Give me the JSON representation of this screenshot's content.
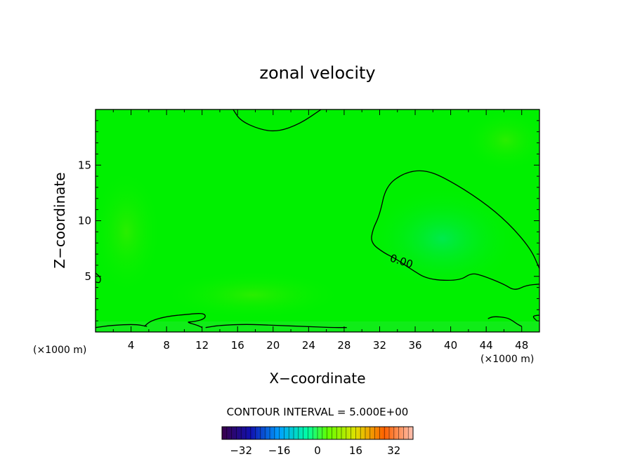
{
  "chart_data": {
    "type": "heatmap",
    "title": "zonal velocity",
    "xlabel": "X−coordinate",
    "ylabel": "Z−coordinate",
    "x_unit_left": "(×1000 m)",
    "x_unit_right": "(×1000 m)",
    "xlim": [
      0,
      50
    ],
    "ylim": [
      0,
      20
    ],
    "xticks": [
      4,
      8,
      12,
      16,
      20,
      24,
      28,
      32,
      36,
      40,
      44,
      48
    ],
    "yticks": [
      5,
      10,
      15
    ],
    "xtick_labels": [
      "4",
      "8",
      "12",
      "16",
      "20",
      "24",
      "28",
      "32",
      "36",
      "40",
      "44",
      "48"
    ],
    "ytick_labels": [
      "5",
      "10",
      "15"
    ],
    "background_color": "#00f000",
    "contour_label": "0.00",
    "contour_interval_text": "CONTOUR INTERVAL = 5.000E+00",
    "colorbar": {
      "range": [
        -40,
        40
      ],
      "ticks": [
        -32,
        -16,
        0,
        16,
        32
      ],
      "tick_labels": [
        "−32",
        "−16",
        "0",
        "16",
        "32"
      ]
    },
    "contours": [
      {
        "level": 0,
        "points": [
          [
            15.5,
            20
          ],
          [
            16.3,
            19
          ],
          [
            18.5,
            18.2
          ],
          [
            20.5,
            18.0
          ],
          [
            23,
            18.7
          ],
          [
            25.4,
            20
          ]
        ]
      },
      {
        "level": 0,
        "points": [
          [
            50,
            5.7
          ],
          [
            49,
            7.5
          ],
          [
            46.5,
            9.8
          ],
          [
            43.5,
            11.8
          ],
          [
            39.5,
            13.8
          ],
          [
            37,
            14.6
          ],
          [
            34.7,
            14.3
          ],
          [
            32.7,
            13.1
          ],
          [
            32,
            10.5
          ],
          [
            31.2,
            9.2
          ],
          [
            31,
            8.0
          ],
          [
            32.5,
            7.1
          ],
          [
            33.8,
            6.6
          ],
          [
            35.6,
            5.6
          ],
          [
            37.5,
            4.7
          ],
          [
            41,
            4.6
          ],
          [
            42.3,
            5.3
          ],
          [
            43.5,
            5.1
          ],
          [
            46,
            4.3
          ],
          [
            47.2,
            3.7
          ],
          [
            48.5,
            4.2
          ],
          [
            50,
            4.3
          ]
        ]
      },
      {
        "level": 0,
        "points": [
          [
            0,
            5.3
          ],
          [
            0.6,
            4.9
          ],
          [
            0.5,
            4.4
          ],
          [
            0,
            4.5
          ]
        ]
      },
      {
        "level": 0,
        "points": [
          [
            0,
            0.4
          ],
          [
            1.8,
            0.6
          ],
          [
            4.5,
            0.7
          ],
          [
            5.8,
            0.5
          ]
        ]
      },
      {
        "level": 0,
        "points": [
          [
            5.5,
            0.5
          ],
          [
            6.2,
            1.0
          ],
          [
            8.0,
            1.4
          ],
          [
            10.5,
            1.6
          ],
          [
            12.3,
            1.7
          ],
          [
            12.4,
            1.2
          ],
          [
            11.0,
            0.9
          ],
          [
            10.2,
            0.9
          ],
          [
            11.5,
            0.6
          ],
          [
            12.0,
            0.4
          ]
        ]
      },
      {
        "level": 0,
        "points": [
          [
            12.4,
            0.4
          ],
          [
            14,
            0.6
          ],
          [
            17,
            0.7
          ],
          [
            20,
            0.6
          ],
          [
            23.6,
            0.5
          ],
          [
            26.5,
            0.4
          ],
          [
            28.3,
            0.4
          ]
        ]
      },
      {
        "level": 0,
        "points": [
          [
            44.2,
            1.2
          ],
          [
            44.8,
            1.4
          ],
          [
            46.3,
            1.3
          ],
          [
            47.0,
            1.0
          ],
          [
            47.5,
            0.7
          ],
          [
            48.0,
            0.5
          ]
        ]
      },
      {
        "level": 0,
        "points": [
          [
            49.7,
            1.0
          ],
          [
            49.2,
            1.4
          ],
          [
            49.7,
            1.5
          ],
          [
            50,
            1.5
          ]
        ]
      }
    ]
  }
}
